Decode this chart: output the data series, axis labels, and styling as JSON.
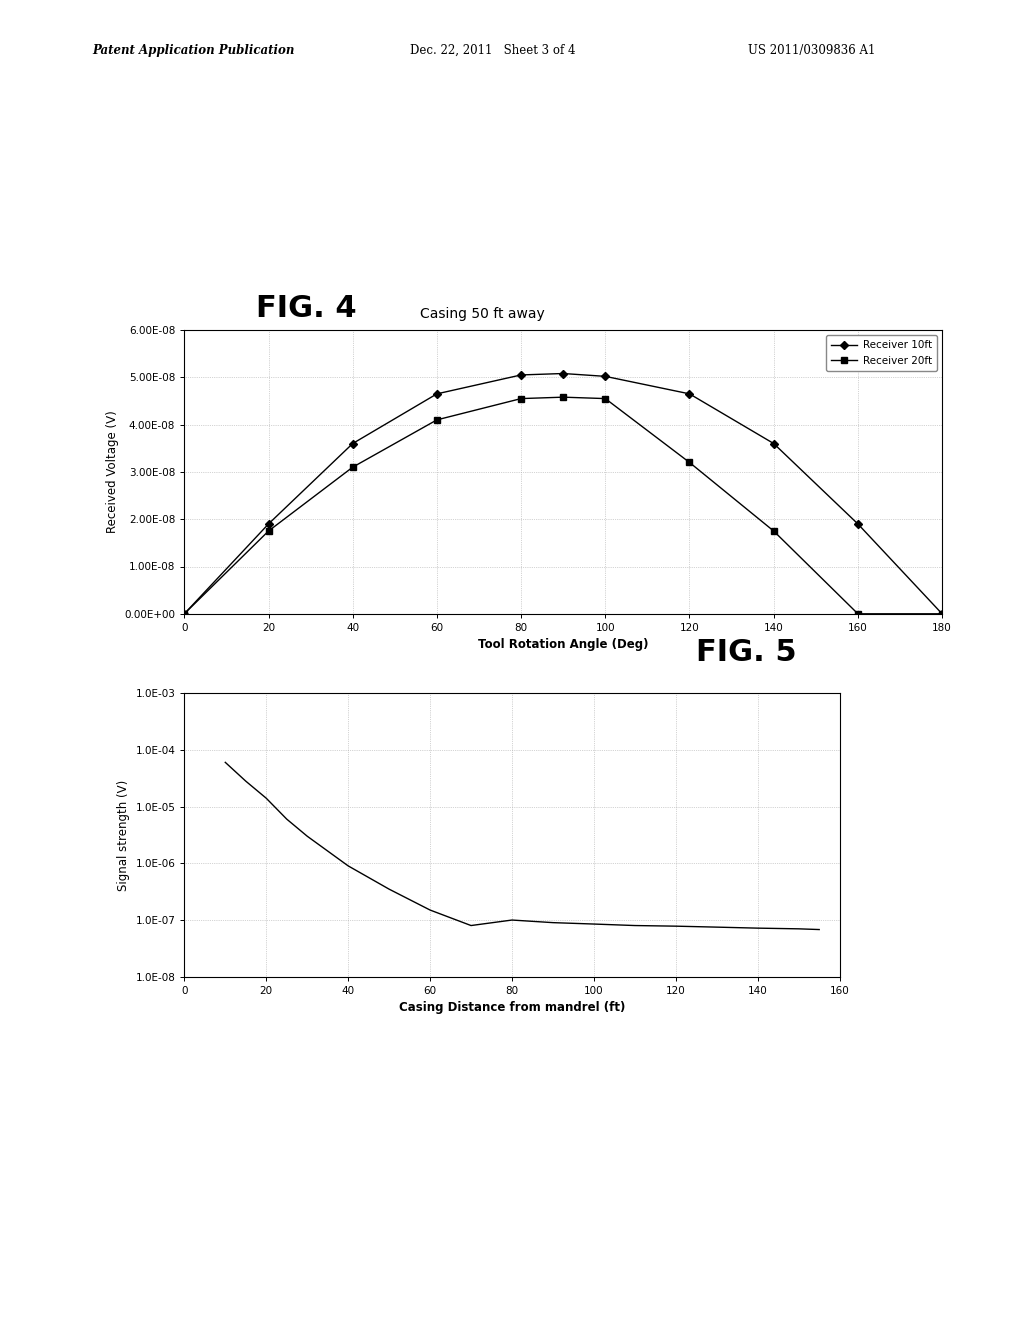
{
  "fig4": {
    "title_fig": "FIG. 4",
    "title_chart": "Casing 50 ft away",
    "xlabel": "Tool Rotation Angle (Deg)",
    "ylabel": "Received Voltage (V)",
    "xlim": [
      0,
      180
    ],
    "ylim": [
      0,
      6e-08
    ],
    "xticks": [
      0,
      20,
      40,
      60,
      80,
      100,
      120,
      140,
      160,
      180
    ],
    "yticks": [
      0,
      1e-08,
      2e-08,
      3e-08,
      4e-08,
      5e-08,
      6e-08
    ],
    "ytick_labels": [
      "0.00E+00",
      "1.00E-08",
      "2.00E-08",
      "3.00E-08",
      "4.00E-08",
      "5.00E-08",
      "6.00E-08"
    ],
    "receiver10_x": [
      0,
      20,
      40,
      60,
      80,
      90,
      100,
      120,
      140,
      160,
      180
    ],
    "receiver10_y": [
      0,
      1.9e-08,
      3.6e-08,
      4.65e-08,
      5.05e-08,
      5.08e-08,
      5.02e-08,
      4.65e-08,
      3.6e-08,
      1.9e-08,
      0
    ],
    "receiver20_x": [
      0,
      20,
      40,
      60,
      80,
      90,
      100,
      120,
      140,
      160,
      180
    ],
    "receiver20_y": [
      0,
      1.75e-08,
      3.1e-08,
      4.1e-08,
      4.55e-08,
      4.58e-08,
      4.55e-08,
      3.2e-08,
      1.75e-08,
      0,
      0
    ],
    "legend_labels": [
      "Receiver 10ft",
      "Receiver 20ft"
    ],
    "line_color": "#000000",
    "background_color": "#ffffff"
  },
  "fig5": {
    "title_fig": "FIG. 5",
    "xlabel": "Casing Distance from mandrel (ft)",
    "ylabel": "Signal strength (V)",
    "xlim": [
      0,
      160
    ],
    "xticks": [
      0,
      20,
      40,
      60,
      80,
      100,
      120,
      140,
      160
    ],
    "ytick_labels": [
      "1.0E-08",
      "1.0E-07",
      "1.0E-06",
      "1.0E-05",
      "1.0E-04",
      "1.0E-03"
    ],
    "signal_x": [
      10,
      15,
      20,
      25,
      30,
      40,
      50,
      60,
      70,
      80,
      90,
      100,
      110,
      120,
      130,
      140,
      150,
      155
    ],
    "signal_y": [
      6e-05,
      2.8e-05,
      1.4e-05,
      6e-06,
      3e-06,
      9e-07,
      3.5e-07,
      1.5e-07,
      8e-08,
      1e-07,
      9e-08,
      8.5e-08,
      8e-08,
      7.8e-08,
      7.5e-08,
      7.2e-08,
      7e-08,
      6.8e-08
    ],
    "line_color": "#000000",
    "background_color": "#ffffff"
  },
  "header_left": "Patent Application Publication",
  "header_mid": "Dec. 22, 2011   Sheet 3 of 4",
  "header_right": "US 2011/0309836 A1",
  "background_color": "#f0f0f0"
}
